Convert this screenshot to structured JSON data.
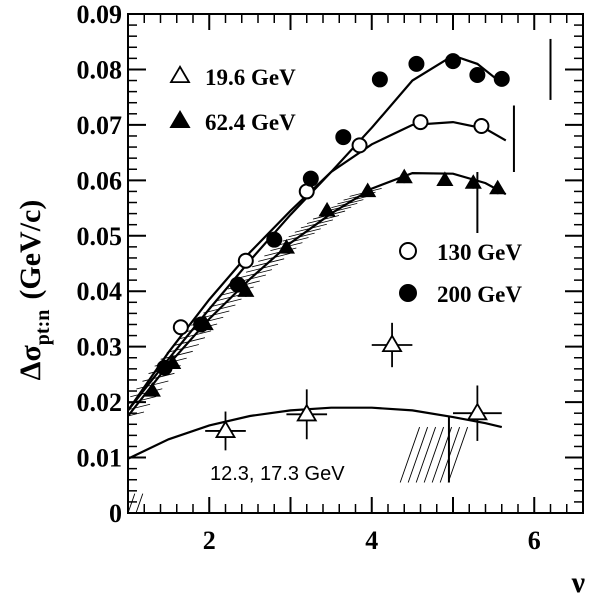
{
  "chart_data": {
    "type": "scatter",
    "xlabel": "ν",
    "ylabel_main": "Δσ",
    "ylabel_sub": "pt:n",
    "ylabel_unit": "(GeV/c)",
    "xlim": [
      1.0,
      6.6
    ],
    "ylim": [
      0,
      0.09
    ],
    "xticks": [
      2,
      4,
      6
    ],
    "xtick_labels": [
      "2",
      "4",
      "6"
    ],
    "yticks": [
      0,
      0.01,
      0.02,
      0.03,
      0.04,
      0.05,
      0.06,
      0.07,
      0.08,
      0.09
    ],
    "ytick_labels": [
      "0",
      "0.01",
      "0.02",
      "0.03",
      "0.04",
      "0.05",
      "0.06",
      "0.07",
      "0.08",
      "0.09"
    ],
    "grid": false,
    "legend": [
      {
        "label": "19.6 GeV",
        "marker": "open-triangle",
        "placement": "top-left"
      },
      {
        "label": "62.4 GeV",
        "marker": "filled-triangle",
        "placement": "top-left"
      },
      {
        "label": "130 GeV",
        "marker": "open-circle",
        "placement": "center-right"
      },
      {
        "label": "200 GeV",
        "marker": "filled-circle",
        "placement": "center-right"
      }
    ],
    "annotation": "12.3, 17.3 GeV",
    "series": [
      {
        "name": "19.6 GeV",
        "marker": "open-triangle",
        "points": [
          {
            "x": 2.2,
            "y": 0.0148,
            "xerr": 0.25,
            "yerr": 0.0035
          },
          {
            "x": 3.2,
            "y": 0.0178,
            "xerr": 0.25,
            "yerr": 0.0045
          },
          {
            "x": 4.25,
            "y": 0.0303,
            "xerr": 0.25,
            "yerr": 0.004
          },
          {
            "x": 5.3,
            "y": 0.018,
            "xerr": 0.3,
            "yerr": 0.005
          }
        ]
      },
      {
        "name": "62.4 GeV",
        "marker": "filled-triangle",
        "points": [
          {
            "x": 1.3,
            "y": 0.022,
            "yerr": 0.001
          },
          {
            "x": 1.55,
            "y": 0.027,
            "yerr": 0.001
          },
          {
            "x": 1.95,
            "y": 0.034,
            "yerr": 0.001
          },
          {
            "x": 2.45,
            "y": 0.04,
            "yerr": 0.001
          },
          {
            "x": 2.95,
            "y": 0.0478,
            "yerr": 0.001
          },
          {
            "x": 3.45,
            "y": 0.0545,
            "yerr": 0.001
          },
          {
            "x": 3.95,
            "y": 0.058,
            "yerr": 0.001
          },
          {
            "x": 4.4,
            "y": 0.0605,
            "yerr": 0.001
          },
          {
            "x": 4.9,
            "y": 0.06,
            "yerr": 0.001
          },
          {
            "x": 5.25,
            "y": 0.0595,
            "yerr": 0.001
          },
          {
            "x": 5.55,
            "y": 0.0585,
            "yerr": 0.001
          }
        ]
      },
      {
        "name": "130 GeV",
        "marker": "open-circle",
        "points": [
          {
            "x": 1.65,
            "y": 0.0335,
            "yerr": 0.001
          },
          {
            "x": 2.45,
            "y": 0.0455,
            "yerr": 0.001
          },
          {
            "x": 3.2,
            "y": 0.058,
            "yerr": 0.001
          },
          {
            "x": 3.85,
            "y": 0.0663,
            "yerr": 0.001
          },
          {
            "x": 4.6,
            "y": 0.0705,
            "yerr": 0.001
          },
          {
            "x": 5.35,
            "y": 0.0698,
            "yerr": 0.001
          }
        ]
      },
      {
        "name": "200 GeV",
        "marker": "filled-circle",
        "points": [
          {
            "x": 1.45,
            "y": 0.0262,
            "yerr": 0.001
          },
          {
            "x": 1.9,
            "y": 0.034,
            "yerr": 0.001
          },
          {
            "x": 2.35,
            "y": 0.0412,
            "yerr": 0.001
          },
          {
            "x": 2.8,
            "y": 0.0493,
            "yerr": 0.001
          },
          {
            "x": 3.25,
            "y": 0.0603,
            "yerr": 0.001
          },
          {
            "x": 3.65,
            "y": 0.0678,
            "yerr": 0.001
          },
          {
            "x": 4.1,
            "y": 0.0782,
            "yerr": 0.0012
          },
          {
            "x": 4.55,
            "y": 0.081,
            "yerr": 0.0012
          },
          {
            "x": 5.0,
            "y": 0.0815,
            "yerr": 0.0012
          },
          {
            "x": 5.3,
            "y": 0.079,
            "yerr": 0.0012
          },
          {
            "x": 5.6,
            "y": 0.0783,
            "yerr": 0.0012
          }
        ]
      }
    ],
    "fit_curves": [
      {
        "for": "200 GeV",
        "x": [
          1.0,
          1.5,
          2.0,
          2.5,
          3.0,
          3.5,
          4.0,
          4.5,
          5.0,
          5.3,
          5.6
        ],
        "y": [
          0.0185,
          0.0278,
          0.0368,
          0.0455,
          0.0538,
          0.0615,
          0.0695,
          0.078,
          0.0825,
          0.081,
          0.0775
        ]
      },
      {
        "for": "130 GeV",
        "x": [
          1.0,
          1.5,
          2.0,
          2.5,
          3.0,
          3.5,
          4.0,
          4.5,
          5.0,
          5.4,
          5.65
        ],
        "y": [
          0.0185,
          0.029,
          0.0385,
          0.047,
          0.0545,
          0.0615,
          0.0665,
          0.07,
          0.0705,
          0.0693,
          0.0672
        ]
      },
      {
        "for": "62.4 GeV",
        "x": [
          1.0,
          1.5,
          2.0,
          2.5,
          3.0,
          3.5,
          4.0,
          4.5,
          5.0,
          5.4,
          5.65
        ],
        "y": [
          0.0175,
          0.0268,
          0.035,
          0.0422,
          0.0487,
          0.054,
          0.0585,
          0.0613,
          0.0612,
          0.0595,
          0.0575
        ]
      },
      {
        "for": "19.6 GeV",
        "x": [
          1.0,
          1.5,
          2.0,
          2.5,
          3.0,
          3.5,
          4.0,
          4.5,
          5.0,
          5.4,
          5.6
        ],
        "y": [
          0.0098,
          0.0133,
          0.0158,
          0.0175,
          0.0185,
          0.019,
          0.019,
          0.0185,
          0.0173,
          0.0162,
          0.0155
        ]
      }
    ],
    "systematic_bars": [
      {
        "x": 6.2,
        "y_low": 0.0745,
        "y_high": 0.0855
      },
      {
        "x": 5.75,
        "y_low": 0.0615,
        "y_high": 0.0735
      },
      {
        "x": 5.3,
        "y_low": 0.0505,
        "y_high": 0.0615
      },
      {
        "x": 4.95,
        "y_low": 0.0055,
        "y_high": 0.0175
      }
    ],
    "hatched_bands": [
      {
        "along": "62.4 GeV",
        "x_from": 1.0,
        "x_to": 4.0
      },
      {
        "corner": "bottom-left",
        "x_from": 1.0,
        "x_to": 1.18,
        "y_from": 0.0,
        "y_to": 0.0035
      },
      {
        "region": "above-annotation",
        "x_from": 4.35,
        "x_to": 4.95,
        "y_from": 0.0055,
        "y_to": 0.0155
      }
    ]
  }
}
